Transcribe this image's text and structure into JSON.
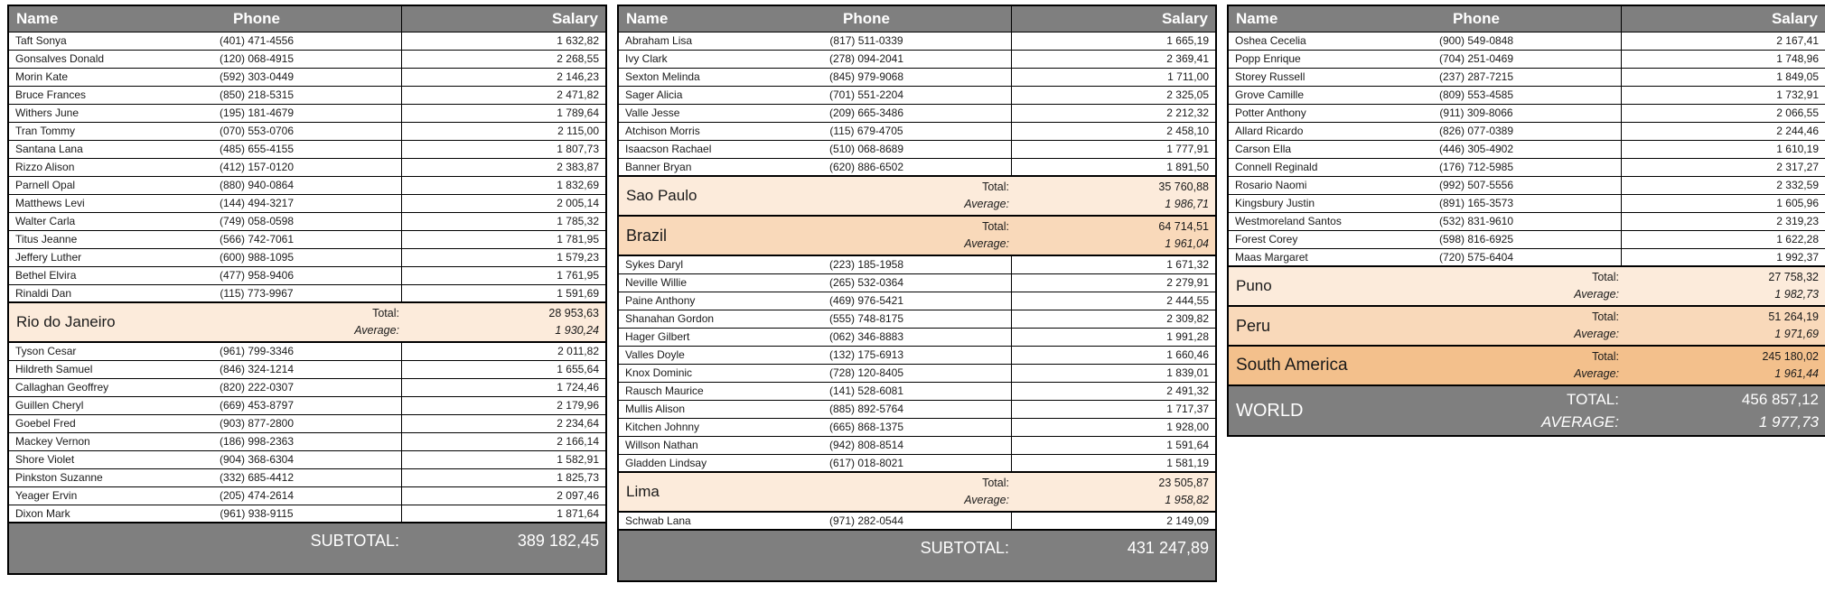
{
  "colors": {
    "gray": "#7f7f7f",
    "city": "#fcebdb",
    "country": "#f9d9ba",
    "continent": "#f3c08c",
    "border": "#000000"
  },
  "columns": {
    "name": "Name",
    "phone": "Phone",
    "salary": "Salary"
  },
  "tables": [
    {
      "rows": [
        {
          "type": "person",
          "name": "Taft Sonya",
          "phone": "(401) 471-4556",
          "salary": "1 632,82"
        },
        {
          "type": "person",
          "name": "Gonsalves Donald",
          "phone": "(120) 068-4915",
          "salary": "2 268,55"
        },
        {
          "type": "person",
          "name": "Morin Kate",
          "phone": "(592) 303-0449",
          "salary": "2 146,23"
        },
        {
          "type": "person",
          "name": "Bruce Frances",
          "phone": "(850) 218-5315",
          "salary": "2 471,82"
        },
        {
          "type": "person",
          "name": "Withers June",
          "phone": "(195) 181-4679",
          "salary": "1 789,64"
        },
        {
          "type": "person",
          "name": "Tran Tommy",
          "phone": "(070) 553-0706",
          "salary": "2 115,00"
        },
        {
          "type": "person",
          "name": "Santana Lana",
          "phone": "(485) 655-4155",
          "salary": "1 807,73"
        },
        {
          "type": "person",
          "name": "Rizzo Alison",
          "phone": "(412) 157-0120",
          "salary": "2 383,87"
        },
        {
          "type": "person",
          "name": "Parnell Opal",
          "phone": "(880) 940-0864",
          "salary": "1 832,69"
        },
        {
          "type": "person",
          "name": "Matthews Levi",
          "phone": "(144) 494-3217",
          "salary": "2 005,14"
        },
        {
          "type": "person",
          "name": "Walter Carla",
          "phone": "(749) 058-0598",
          "salary": "1 785,32"
        },
        {
          "type": "person",
          "name": "Titus Jeanne",
          "phone": "(566) 742-7061",
          "salary": "1 781,95"
        },
        {
          "type": "person",
          "name": "Jeffery Luther",
          "phone": "(600) 988-1095",
          "salary": "1 579,23"
        },
        {
          "type": "person",
          "name": "Bethel Elvira",
          "phone": "(477) 958-9406",
          "salary": "1 761,95"
        },
        {
          "type": "person",
          "name": "Rinaldi Dan",
          "phone": "(115) 773-9967",
          "salary": "1 591,69"
        },
        {
          "type": "section",
          "level": "city",
          "name": "Rio do Janeiro",
          "total_label": "Total:",
          "total": "28 953,63",
          "average_label": "Average:",
          "average": "1 930,24"
        },
        {
          "type": "person",
          "name": "Tyson Cesar",
          "phone": "(961) 799-3346",
          "salary": "2 011,82"
        },
        {
          "type": "person",
          "name": "Hildreth Samuel",
          "phone": "(846) 324-1214",
          "salary": "1 655,64"
        },
        {
          "type": "person",
          "name": "Callaghan Geoffrey",
          "phone": "(820) 222-0307",
          "salary": "1 724,46"
        },
        {
          "type": "person",
          "name": "Guillen Cheryl",
          "phone": "(669) 453-8797",
          "salary": "2 179,96"
        },
        {
          "type": "person",
          "name": "Goebel Fred",
          "phone": "(903) 877-2800",
          "salary": "2 234,64"
        },
        {
          "type": "person",
          "name": "Mackey Vernon",
          "phone": "(186) 998-2363",
          "salary": "2 166,14"
        },
        {
          "type": "person",
          "name": "Shore Violet",
          "phone": "(904) 368-6304",
          "salary": "1 582,91"
        },
        {
          "type": "person",
          "name": "Pinkston Suzanne",
          "phone": "(332) 685-4412",
          "salary": "1 825,73"
        },
        {
          "type": "person",
          "name": "Yeager Ervin",
          "phone": "(205) 474-2614",
          "salary": "2 097,46"
        },
        {
          "type": "person",
          "name": "Dixon Mark",
          "phone": "(961) 938-9115",
          "salary": "1 871,64"
        }
      ],
      "footer": {
        "label": "SUBTOTAL:",
        "value": "389 182,45"
      }
    },
    {
      "rows": [
        {
          "type": "person",
          "name": "Abraham Lisa",
          "phone": "(817) 511-0339",
          "salary": "1 665,19"
        },
        {
          "type": "person",
          "name": "Ivy Clark",
          "phone": "(278) 094-2041",
          "salary": "2 369,41"
        },
        {
          "type": "person",
          "name": "Sexton Melinda",
          "phone": "(845) 979-9068",
          "salary": "1 711,00"
        },
        {
          "type": "person",
          "name": "Sager Alicia",
          "phone": "(701) 551-2204",
          "salary": "2 325,05"
        },
        {
          "type": "person",
          "name": "Valle Jesse",
          "phone": "(209) 665-3486",
          "salary": "2 212,32"
        },
        {
          "type": "person",
          "name": "Atchison Morris",
          "phone": "(115) 679-4705",
          "salary": "2 458,10"
        },
        {
          "type": "person",
          "name": "Isaacson Rachael",
          "phone": "(510) 068-8689",
          "salary": "1 777,91"
        },
        {
          "type": "person",
          "name": "Banner Bryan",
          "phone": "(620) 886-6502",
          "salary": "1 891,50"
        },
        {
          "type": "section",
          "level": "city",
          "name": "Sao Paulo",
          "total_label": "Total:",
          "total": "35 760,88",
          "average_label": "Average:",
          "average": "1 986,71"
        },
        {
          "type": "section",
          "level": "country",
          "name": "Brazil",
          "total_label": "Total:",
          "total": "64 714,51",
          "average_label": "Average:",
          "average": "1 961,04"
        },
        {
          "type": "person",
          "name": "Sykes Daryl",
          "phone": "(223) 185-1958",
          "salary": "1 671,32"
        },
        {
          "type": "person",
          "name": "Neville Willie",
          "phone": "(265) 532-0364",
          "salary": "2 279,91"
        },
        {
          "type": "person",
          "name": "Paine Anthony",
          "phone": "(469) 976-5421",
          "salary": "2 444,55"
        },
        {
          "type": "person",
          "name": "Shanahan Gordon",
          "phone": "(555) 748-8175",
          "salary": "2 309,82"
        },
        {
          "type": "person",
          "name": "Hager Gilbert",
          "phone": "(062) 346-8883",
          "salary": "1 991,28"
        },
        {
          "type": "person",
          "name": "Valles Doyle",
          "phone": "(132) 175-6913",
          "salary": "1 660,46"
        },
        {
          "type": "person",
          "name": "Knox Dominic",
          "phone": "(728) 120-8405",
          "salary": "1 839,01"
        },
        {
          "type": "person",
          "name": "Rausch Maurice",
          "phone": "(141) 528-6081",
          "salary": "2 491,32"
        },
        {
          "type": "person",
          "name": "Mullis Alison",
          "phone": "(885) 892-5764",
          "salary": "1 717,37"
        },
        {
          "type": "person",
          "name": "Kitchen Johnny",
          "phone": "(665) 868-1375",
          "salary": "1 928,00"
        },
        {
          "type": "person",
          "name": "Willson Nathan",
          "phone": "(942) 808-8514",
          "salary": "1 591,64"
        },
        {
          "type": "person",
          "name": "Gladden Lindsay",
          "phone": "(617) 018-8021",
          "salary": "1 581,19"
        },
        {
          "type": "section",
          "level": "city",
          "name": "Lima",
          "total_label": "Total:",
          "total": "23 505,87",
          "average_label": "Average:",
          "average": "1 958,82"
        },
        {
          "type": "person",
          "name": "Schwab Lana",
          "phone": "(971) 282-0544",
          "salary": "2 149,09"
        }
      ],
      "footer": {
        "label": "SUBTOTAL:",
        "value": "431 247,89"
      }
    },
    {
      "rows": [
        {
          "type": "person",
          "name": "Oshea Cecelia",
          "phone": "(900) 549-0848",
          "salary": "2 167,41"
        },
        {
          "type": "person",
          "name": "Popp Enrique",
          "phone": "(704) 251-0469",
          "salary": "1 748,96"
        },
        {
          "type": "person",
          "name": "Storey Russell",
          "phone": "(237) 287-7215",
          "salary": "1 849,05"
        },
        {
          "type": "person",
          "name": "Grove Camille",
          "phone": "(809) 553-4585",
          "salary": "1 732,91"
        },
        {
          "type": "person",
          "name": "Potter Anthony",
          "phone": "(911) 309-8066",
          "salary": "2 066,55"
        },
        {
          "type": "person",
          "name": "Allard Ricardo",
          "phone": "(826) 077-0389",
          "salary": "2 244,46"
        },
        {
          "type": "person",
          "name": "Carson Ella",
          "phone": "(446) 305-4902",
          "salary": "1 610,19"
        },
        {
          "type": "person",
          "name": "Connell Reginald",
          "phone": "(176) 712-5985",
          "salary": "2 317,27"
        },
        {
          "type": "person",
          "name": "Rosario Naomi",
          "phone": "(992) 507-5556",
          "salary": "2 332,59"
        },
        {
          "type": "person",
          "name": "Kingsbury Justin",
          "phone": "(891) 165-3573",
          "salary": "1 605,96"
        },
        {
          "type": "person",
          "name": "Westmoreland Santos",
          "phone": "(532) 831-9610",
          "salary": "2 319,23"
        },
        {
          "type": "person",
          "name": "Forest Corey",
          "phone": "(598) 816-6925",
          "salary": "1 622,28"
        },
        {
          "type": "person",
          "name": "Maas Margaret",
          "phone": "(720) 575-6404",
          "salary": "1 992,37"
        },
        {
          "type": "section",
          "level": "city",
          "name": "Puno",
          "total_label": "Total:",
          "total": "27 758,32",
          "average_label": "Average:",
          "average": "1 982,73"
        },
        {
          "type": "section",
          "level": "country",
          "name": "Peru",
          "total_label": "Total:",
          "total": "51 264,19",
          "average_label": "Average:",
          "average": "1 971,69"
        },
        {
          "type": "section",
          "level": "continent",
          "name": "South America",
          "total_label": "Total:",
          "total": "245 180,02",
          "average_label": "Average:",
          "average": "1 961,44"
        },
        {
          "type": "section",
          "level": "world",
          "name": "WORLD",
          "total_label": "TOTAL:",
          "total": "456 857,12",
          "average_label": "AVERAGE:",
          "average": "1 977,73"
        }
      ]
    }
  ]
}
